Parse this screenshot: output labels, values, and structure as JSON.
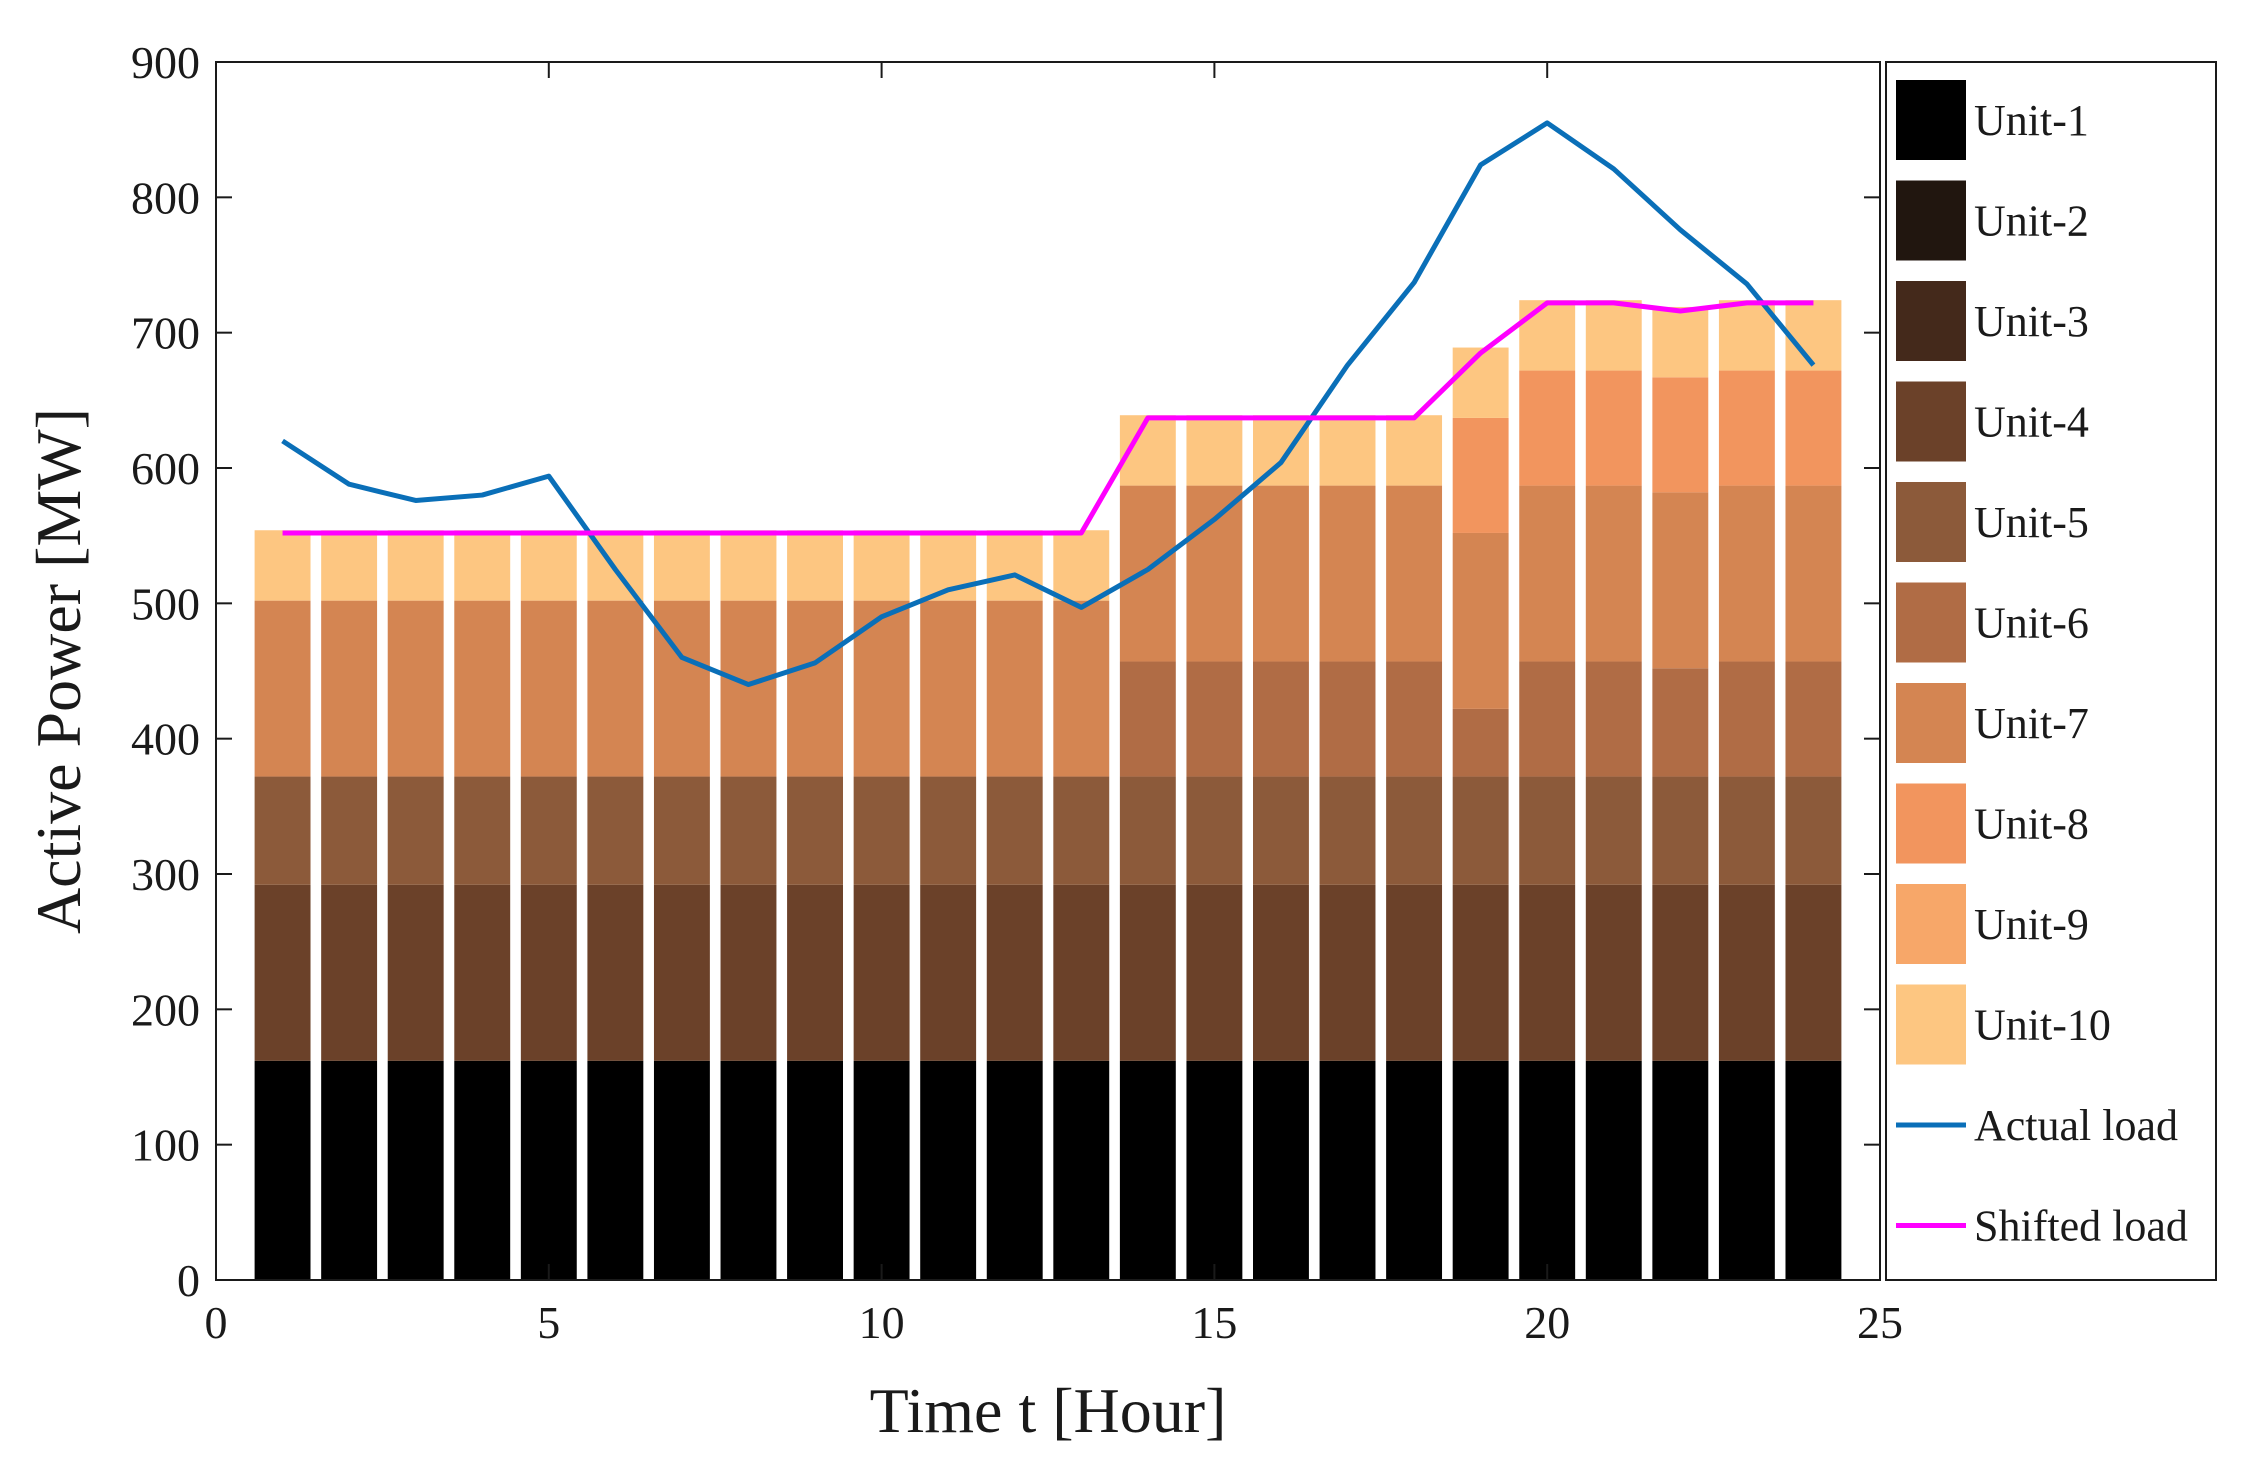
{
  "chart_data": {
    "type": "bar",
    "stacked": true,
    "xlabel": "Time t [Hour]",
    "ylabel": "Active Power [MW]",
    "xlim": [
      0,
      25
    ],
    "ylim": [
      0,
      900
    ],
    "xticks": [
      "0",
      "5",
      "10",
      "15",
      "20",
      "25"
    ],
    "yticks": [
      "0",
      "100",
      "200",
      "300",
      "400",
      "500",
      "600",
      "700",
      "800",
      "900"
    ],
    "grid": false,
    "legend_position": "right-outside",
    "hours": [
      1,
      2,
      3,
      4,
      5,
      6,
      7,
      8,
      9,
      10,
      11,
      12,
      13,
      14,
      15,
      16,
      17,
      18,
      19,
      20,
      21,
      22,
      23,
      24
    ],
    "series": [
      {
        "name": "Unit-1",
        "color": "#000000",
        "values": [
          162,
          162,
          162,
          162,
          162,
          162,
          162,
          162,
          162,
          162,
          162,
          162,
          162,
          162,
          162,
          162,
          162,
          162,
          162,
          162,
          162,
          162,
          162,
          162
        ]
      },
      {
        "name": "Unit-2",
        "color": "#21160f",
        "values": [
          0,
          0,
          0,
          0,
          0,
          0,
          0,
          0,
          0,
          0,
          0,
          0,
          0,
          0,
          0,
          0,
          0,
          0,
          0,
          0,
          0,
          0,
          0,
          0
        ]
      },
      {
        "name": "Unit-3",
        "color": "#44291b",
        "values": [
          0,
          0,
          0,
          0,
          0,
          0,
          0,
          0,
          0,
          0,
          0,
          0,
          0,
          0,
          0,
          0,
          0,
          0,
          0,
          0,
          0,
          0,
          0,
          0
        ]
      },
      {
        "name": "Unit-4",
        "color": "#6b4129",
        "values": [
          130,
          130,
          130,
          130,
          130,
          130,
          130,
          130,
          130,
          130,
          130,
          130,
          130,
          130,
          130,
          130,
          130,
          130,
          130,
          130,
          130,
          130,
          130,
          130
        ]
      },
      {
        "name": "Unit-5",
        "color": "#8c5a3a",
        "values": [
          80,
          80,
          80,
          80,
          80,
          80,
          80,
          80,
          80,
          80,
          80,
          80,
          80,
          80,
          80,
          80,
          80,
          80,
          80,
          80,
          80,
          80,
          80,
          80
        ]
      },
      {
        "name": "Unit-6",
        "color": "#b06c45",
        "values": [
          0,
          0,
          0,
          0,
          0,
          0,
          0,
          0,
          0,
          0,
          0,
          0,
          0,
          85,
          85,
          85,
          85,
          85,
          50,
          85,
          85,
          80,
          85,
          85
        ]
      },
      {
        "name": "Unit-7",
        "color": "#d48552",
        "values": [
          130,
          130,
          130,
          130,
          130,
          130,
          130,
          130,
          130,
          130,
          130,
          130,
          130,
          130,
          130,
          130,
          130,
          130,
          130,
          130,
          130,
          130,
          130,
          130
        ]
      },
      {
        "name": "Unit-8",
        "color": "#f2955e",
        "values": [
          0,
          0,
          0,
          0,
          0,
          0,
          0,
          0,
          0,
          0,
          0,
          0,
          0,
          0,
          0,
          0,
          0,
          0,
          85,
          85,
          85,
          85,
          85,
          85
        ]
      },
      {
        "name": "Unit-9",
        "color": "#f7a769",
        "values": [
          0,
          0,
          0,
          0,
          0,
          0,
          0,
          0,
          0,
          0,
          0,
          0,
          0,
          0,
          0,
          0,
          0,
          0,
          0,
          0,
          0,
          0,
          0,
          0
        ]
      },
      {
        "name": "Unit-10",
        "color": "#fdc681",
        "values": [
          52,
          52,
          52,
          52,
          52,
          52,
          52,
          52,
          52,
          52,
          52,
          52,
          52,
          52,
          52,
          52,
          52,
          52,
          52,
          52,
          52,
          52,
          52,
          52
        ]
      }
    ],
    "lines": [
      {
        "name": "Actual load",
        "color": "#0a6fb8",
        "values": [
          620,
          588,
          576,
          580,
          594,
          525,
          460,
          440,
          456,
          490,
          510,
          521,
          497,
          525,
          562,
          604,
          676,
          737,
          824,
          855,
          821,
          776,
          736,
          676
        ]
      },
      {
        "name": "Shifted load",
        "color": "#ff00ff",
        "values": [
          552,
          552,
          552,
          552,
          552,
          552,
          552,
          552,
          552,
          552,
          552,
          552,
          552,
          637,
          637,
          637,
          637,
          637,
          685,
          722,
          722,
          716,
          722,
          722
        ]
      }
    ]
  }
}
